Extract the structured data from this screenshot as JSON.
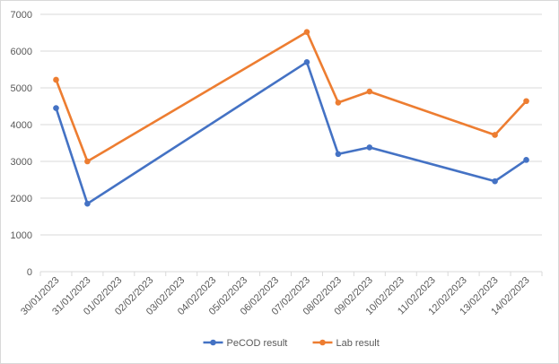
{
  "chart_data": {
    "type": "line",
    "title": "",
    "xlabel": "",
    "ylabel": "",
    "ylim": [
      0,
      7000
    ],
    "yticks": [
      0,
      1000,
      2000,
      3000,
      4000,
      5000,
      6000,
      7000
    ],
    "grid": true,
    "legend_position": "bottom",
    "categories": [
      "30/01/2023",
      "31/01/2023",
      "01/02/2023",
      "02/02/2023",
      "03/02/2023",
      "04/02/2023",
      "05/02/2023",
      "06/02/2023",
      "07/02/2023",
      "08/02/2023",
      "09/02/2023",
      "10/02/2023",
      "11/02/2023",
      "12/02/2023",
      "13/02/2023",
      "14/02/2023"
    ],
    "series": [
      {
        "name": "PeCOD result",
        "color": "#4472C4",
        "points": [
          {
            "x": "30/01/2023",
            "y": 4450
          },
          {
            "x": "31/01/2023",
            "y": 1850
          },
          {
            "x": "07/02/2023",
            "y": 5700
          },
          {
            "x": "08/02/2023",
            "y": 3200
          },
          {
            "x": "09/02/2023",
            "y": 3380
          },
          {
            "x": "13/02/2023",
            "y": 2460
          },
          {
            "x": "14/02/2023",
            "y": 3040
          }
        ]
      },
      {
        "name": "Lab result",
        "color": "#ED7D31",
        "points": [
          {
            "x": "30/01/2023",
            "y": 5220
          },
          {
            "x": "31/01/2023",
            "y": 3000
          },
          {
            "x": "07/02/2023",
            "y": 6520
          },
          {
            "x": "08/02/2023",
            "y": 4600
          },
          {
            "x": "09/02/2023",
            "y": 4900
          },
          {
            "x": "13/02/2023",
            "y": 3720
          },
          {
            "x": "14/02/2023",
            "y": 4640
          }
        ]
      }
    ]
  }
}
